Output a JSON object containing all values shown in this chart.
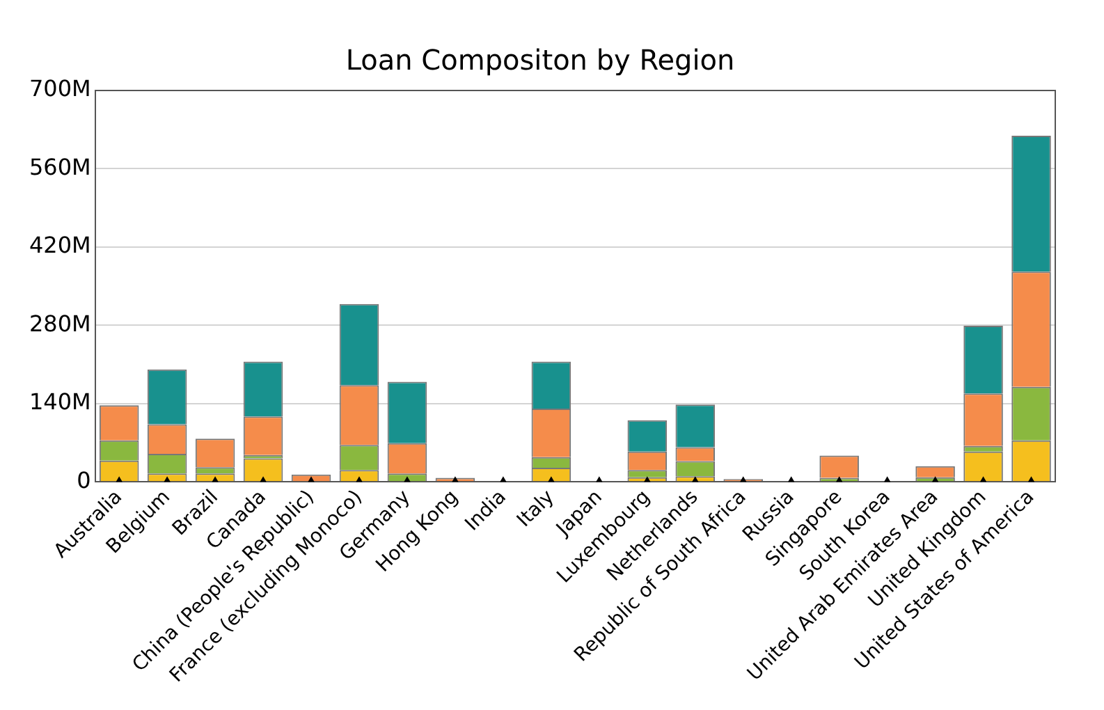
{
  "chart_data": {
    "type": "bar",
    "title": "Loan Compositon by Region",
    "stacked": true,
    "categories": [
      "Australia",
      "Belgium",
      "Brazil",
      "Canada",
      "China (People's Republic)",
      "France (excluding Monoco)",
      "Germany",
      "Hong Kong",
      "India",
      "Italy",
      "Japan",
      "Luxembourg",
      "Netherlands",
      "Republic of South Africa",
      "Russia",
      "Singapore",
      "South Korea",
      "United Arab Emirates Area",
      "United Kingdom",
      "United States of America"
    ],
    "series": [
      {
        "color": "#f5bf1e",
        "values": [
          38,
          15,
          15,
          42,
          0,
          21,
          null,
          0,
          0,
          25,
          0,
          8,
          10,
          0,
          0,
          0,
          0,
          null,
          54,
          74
        ]
      },
      {
        "color": "#8ab83f",
        "values": [
          36,
          35,
          11,
          6,
          null,
          45,
          15,
          0,
          0,
          19,
          0,
          13,
          27,
          0,
          0,
          7,
          0,
          8,
          10,
          96
        ]
      },
      {
        "color": "#f58c4b",
        "values": [
          63,
          53,
          51,
          69,
          13,
          107,
          54,
          7,
          null,
          87,
          0,
          33,
          25,
          5,
          null,
          40,
          0,
          20,
          94,
          206
        ]
      },
      {
        "color": "#18918e",
        "values": [
          0,
          98,
          0,
          98,
          0,
          145,
          110,
          0,
          0,
          84,
          0,
          56,
          76,
          0,
          0,
          0,
          0,
          0,
          121,
          243
        ]
      },
      {
        "type": "scatter",
        "color": "#000000",
        "marker": "triangle",
        "values": [
          0,
          0,
          0,
          0,
          0,
          0,
          0,
          0,
          0,
          0,
          0,
          0,
          0,
          0,
          0,
          0,
          0,
          0,
          0,
          0
        ]
      }
    ],
    "ylim": [
      0,
      700
    ],
    "yticks": [
      {
        "value": 0,
        "label": "0"
      },
      {
        "value": 140,
        "label": "140M"
      },
      {
        "value": 280,
        "label": "280M"
      },
      {
        "value": 420,
        "label": "420M"
      },
      {
        "value": 560,
        "label": "560M"
      },
      {
        "value": 700,
        "label": "700M"
      }
    ],
    "grid": "y",
    "legend": false
  }
}
